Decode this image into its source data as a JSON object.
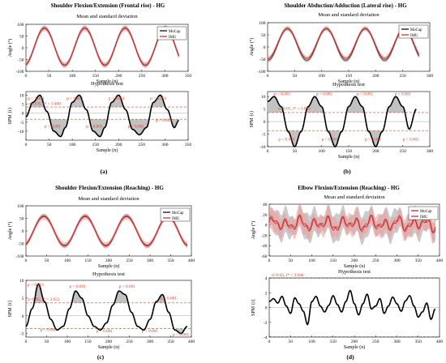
{
  "figure": {
    "background": "#ffffff",
    "colors": {
      "mocap": "#000000",
      "imu": "#cc2222",
      "imu_band": "#ef9a9a",
      "mocap_band": "#8c8c8c",
      "accent_curve": "#b3191c",
      "threshold": "#d9432c",
      "spm_fill": "#c2c2c2"
    }
  },
  "chart_data": [
    {
      "id": "a",
      "type": "line",
      "panel_label": "(a)",
      "title": "Shoulder Flexion/Extension (Frontal rise) - HG",
      "top": {
        "subtitle": "Mean and standard deviation",
        "ylabel": "Angle (°)",
        "xlabel": "Sample (n)",
        "xlim": [
          0,
          350
        ],
        "ylim": [
          -100,
          100
        ],
        "xticks": [
          0,
          50,
          100,
          150,
          200,
          250,
          300,
          350
        ],
        "yticks": [
          -100,
          -50,
          0,
          50,
          100
        ],
        "legend": [
          "MoCap",
          "IMU"
        ],
        "legend_position": "top-right",
        "series": [
          {
            "name": "MoCap",
            "color": "#000000",
            "n": 330,
            "offset": 5,
            "amplitude": 80,
            "period": 87,
            "phase": 0.0,
            "band": 10
          },
          {
            "name": "IMU",
            "color": "#cc2222",
            "n": 330,
            "offset": 5,
            "amplitude": 78,
            "period": 87,
            "phase": 0.0,
            "band": 12
          }
        ]
      },
      "bottom": {
        "subtitle": "Hypothesis test",
        "ylabel": "SPM {t}",
        "xlabel": "Sample (n)",
        "xlim": [
          0,
          350
        ],
        "ylim": [
          -15,
          12
        ],
        "xticks": [
          0,
          50,
          100,
          150,
          200,
          250,
          300,
          350
        ],
        "yticks": [
          -10,
          -5,
          0,
          5,
          10
        ],
        "thresholds": [
          3.4,
          -3.4
        ],
        "spm": {
          "x": [
            0,
            15,
            30,
            45,
            60,
            75,
            85,
            100,
            115,
            130,
            145,
            160,
            170,
            185,
            200,
            215,
            230,
            245,
            260,
            275,
            290,
            305,
            320,
            330
          ],
          "y": [
            -2,
            6,
            10,
            1,
            -10,
            -13,
            -8,
            6,
            10,
            2,
            -10,
            -13,
            -8,
            6,
            10,
            2,
            -9,
            -12,
            -8,
            6,
            10,
            2,
            -8,
            -4
          ]
        },
        "annotations": [
          {
            "text": "p < 0.001",
            "x": 4,
            "y": 7.5
          },
          {
            "text": "α=0.05,   t* = 3.400",
            "x": 6,
            "y": 4.6
          },
          {
            "text": "p < 0.001",
            "x": 88,
            "y": 7.5
          },
          {
            "text": "p < 0.001",
            "x": 178,
            "y": 7.5
          },
          {
            "text": "p < 0.001",
            "x": 268,
            "y": 7.5
          },
          {
            "text": "p < 0.001",
            "x": 40,
            "y": -8
          },
          {
            "text": "p < 0.001",
            "x": 130,
            "y": -8
          },
          {
            "text": "p < 0.001",
            "x": 220,
            "y": -8
          },
          {
            "text": "p < 0.001",
            "x": 280,
            "y": -4.6
          }
        ]
      }
    },
    {
      "id": "b",
      "type": "line",
      "panel_label": "(b)",
      "title": "Shoulder Abduction/Adduction (Lateral rise) - HG",
      "top": {
        "subtitle": "Mean and standard deviation",
        "ylabel": "Angle (°)",
        "xlabel": "Sample (n)",
        "xlim": [
          0,
          300
        ],
        "ylim": [
          -100,
          100
        ],
        "xticks": [
          0,
          50,
          100,
          150,
          200,
          250,
          300
        ],
        "yticks": [
          -100,
          -50,
          0,
          50,
          100
        ],
        "legend": [
          "MoCap",
          "IMU"
        ],
        "legend_position": "top-right",
        "series": [
          {
            "name": "MoCap",
            "color": "#000000",
            "n": 280,
            "offset": 10,
            "amplitude": 65,
            "period": 72,
            "phase": 0.3,
            "band": 8
          },
          {
            "name": "IMU",
            "color": "#cc2222",
            "n": 280,
            "offset": 15,
            "amplitude": 62,
            "period": 72,
            "phase": 0.3,
            "band": 10
          }
        ]
      },
      "bottom": {
        "subtitle": "Hypothesis test",
        "ylabel": "SPM {t}",
        "xlabel": "Sample (n)",
        "xlim": [
          0,
          300
        ],
        "ylim": [
          -10,
          12
        ],
        "xticks": [
          0,
          50,
          100,
          150,
          200,
          250,
          300
        ],
        "yticks": [
          -10,
          -5,
          0,
          5,
          10
        ],
        "thresholds": [
          3.6,
          -3.6
        ],
        "spm": {
          "x": [
            0,
            12,
            25,
            38,
            50,
            62,
            75,
            87,
            100,
            112,
            125,
            137,
            150,
            162,
            175,
            187,
            200,
            212,
            225,
            237,
            250,
            262,
            275
          ],
          "y": [
            8,
            10,
            6,
            -4,
            -10,
            -4,
            6,
            10,
            6,
            -4,
            -10,
            -4,
            6,
            10,
            6,
            -4,
            -10,
            -4,
            6,
            10,
            6,
            -3,
            5
          ]
        },
        "annotations": [
          {
            "text": "p < 0.001",
            "x": 12,
            "y": 10.5
          },
          {
            "text": "α=0.05,   t* = 3.640",
            "x": 20,
            "y": 4.8
          },
          {
            "text": "p < 0.001",
            "x": 90,
            "y": 10.5
          },
          {
            "text": "p < 0.001",
            "x": 165,
            "y": 10.5
          },
          {
            "text": "p < 0.001",
            "x": 235,
            "y": 10.5
          },
          {
            "text": "p = 0.001",
            "x": 20,
            "y": -7.5
          },
          {
            "text": "p < 0.001",
            "x": 100,
            "y": -7.5
          },
          {
            "text": "p < 0.001",
            "x": 180,
            "y": -7.5
          },
          {
            "text": "p < 0.001",
            "x": 250,
            "y": -7.5
          }
        ]
      }
    },
    {
      "id": "c",
      "type": "line",
      "panel_label": "(c)",
      "title": "Shoulder Flexion/Extension (Reaching) - HG",
      "top": {
        "subtitle": "Mean and standard deviation",
        "ylabel": "Angle (°)",
        "xlabel": "Sample (n)",
        "xlim": [
          0,
          400
        ],
        "ylim": [
          -100,
          100
        ],
        "xticks": [
          0,
          50,
          100,
          150,
          200,
          250,
          300,
          350,
          400
        ],
        "yticks": [
          -100,
          -50,
          0,
          50,
          100
        ],
        "legend": [
          "MoCap",
          "IMU"
        ],
        "legend_position": "top-right",
        "series": [
          {
            "name": "MoCap",
            "color": "#000000",
            "n": 390,
            "offset": 0,
            "amplitude": 60,
            "period": 100,
            "phase": -0.2,
            "band": 8
          },
          {
            "name": "IMU",
            "color": "#cc2222",
            "n": 390,
            "offset": 0,
            "amplitude": 57,
            "period": 100,
            "phase": -0.2,
            "band": 12
          }
        ]
      },
      "bottom": {
        "subtitle": "Hypothesis test",
        "ylabel": "SPM {t}",
        "xlabel": "Sample (n)",
        "xlim": [
          0,
          400
        ],
        "ylim": [
          -6,
          10
        ],
        "xticks": [
          0,
          50,
          100,
          150,
          200,
          250,
          300,
          350,
          400
        ],
        "yticks": [
          -5,
          0,
          5,
          10
        ],
        "thresholds": [
          3.652,
          -3.652
        ],
        "spm": {
          "x": [
            0,
            15,
            30,
            45,
            60,
            75,
            90,
            105,
            120,
            135,
            150,
            165,
            180,
            195,
            210,
            225,
            240,
            255,
            270,
            285,
            300,
            315,
            330,
            345,
            360,
            375,
            390
          ],
          "y": [
            -3,
            2,
            9,
            4,
            -1,
            -4,
            -3,
            2,
            7,
            5,
            0,
            -3,
            -4,
            -2,
            3,
            7,
            6,
            1,
            -3,
            -4,
            -1,
            4,
            6,
            1,
            -4,
            -5,
            -3
          ]
        },
        "annotations": [
          {
            "text": "p < 0.001",
            "x": 4,
            "y": 8.4
          },
          {
            "text": "α=0.05,   t* = 3.652",
            "x": 4,
            "y": 4.3
          },
          {
            "text": "p < 0.001",
            "x": 105,
            "y": 8.0
          },
          {
            "text": "p < 0.001",
            "x": 225,
            "y": 8.0
          },
          {
            "text": "p < 0.001",
            "x": 325,
            "y": 4.6
          },
          {
            "text": "p = 0.005",
            "x": 35,
            "y": -4.3
          },
          {
            "text": "p < 0.001",
            "x": 170,
            "y": -4.6
          },
          {
            "text": "p < 0.001",
            "x": 280,
            "y": -4.6
          },
          {
            "text": "p < 0.001",
            "x": 355,
            "y": -5.7
          }
        ]
      }
    },
    {
      "id": "d",
      "type": "line",
      "panel_label": "(d)",
      "title": "Elbow Flexion/Extension (Reaching) - HG",
      "top": {
        "subtitle": "Mean and standard deviation",
        "ylabel": "Angle (°)",
        "xlabel": "Sample (n)",
        "xlim": [
          0,
          400
        ],
        "ylim": [
          -60,
          40
        ],
        "xticks": [
          0,
          50,
          100,
          150,
          200,
          250,
          300,
          350,
          400
        ],
        "yticks": [
          -60,
          -40,
          -20,
          0,
          20,
          40
        ],
        "legend": [
          "MoCap",
          "IMU"
        ],
        "legend_position": "top-right",
        "series": [
          {
            "name": "MoCap",
            "color": "#b3191c",
            "n": 390,
            "offset": 2,
            "amplitude": 8,
            "period": 33,
            "phase": 0.0,
            "band": 22
          },
          {
            "name": "IMU",
            "color": "#cc2222",
            "n": 390,
            "offset": 2,
            "amplitude": 8,
            "period": 33,
            "phase": 0.0,
            "band": 18
          }
        ]
      },
      "bottom": {
        "subtitle": "Hypothesis test",
        "ylabel": "SPM {t}",
        "xlabel": "Sample (n)",
        "xlim": [
          0,
          400
        ],
        "ylim": [
          -4,
          4
        ],
        "xticks": [
          0,
          50,
          100,
          150,
          200,
          250,
          300,
          350,
          400
        ],
        "yticks": [
          -4,
          -2,
          0,
          2,
          4
        ],
        "thresholds": [
          3.946,
          -3.946
        ],
        "spm": {
          "x": [
            0,
            10,
            20,
            30,
            40,
            50,
            60,
            70,
            80,
            90,
            100,
            110,
            120,
            130,
            140,
            150,
            160,
            170,
            180,
            190,
            200,
            210,
            220,
            230,
            240,
            250,
            260,
            270,
            280,
            290,
            300,
            310,
            320,
            330,
            340,
            350,
            360,
            370,
            380,
            390
          ],
          "y": [
            0.8,
            1.2,
            0.6,
            1.5,
            0.2,
            -0.8,
            1.3,
            0.5,
            -0.5,
            -2.3,
            0.8,
            1.5,
            0.2,
            -0.6,
            0.3,
            1.6,
            0.4,
            -0.6,
            0.8,
            2.3,
            0.5,
            -1.0,
            0.5,
            1.8,
            -0.2,
            0.2,
            1.2,
            -0.8,
            0.2,
            1.4,
            0.5,
            -0.5,
            0.9,
            1.6,
            0.2,
            -1.3,
            -0.6,
            0.6,
            -1.6,
            -0.2
          ]
        },
        "annotations": [
          {
            "text": "α=0.05,   t* = 3.946",
            "x": 6,
            "y": 4.2
          }
        ]
      }
    }
  ]
}
